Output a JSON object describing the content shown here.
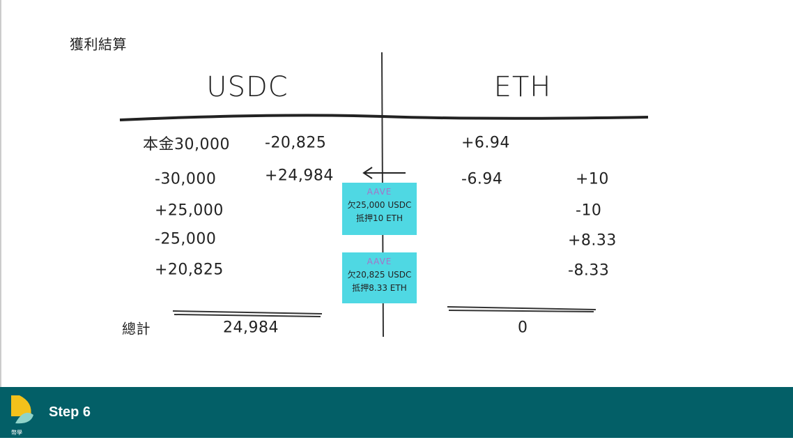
{
  "header": {
    "title": "獲利結算"
  },
  "columns": {
    "usdc": {
      "heading": "USDC",
      "entries": [
        "本金30,000",
        "-20,825",
        "-30,000",
        "+24,984",
        "+25,000",
        "-25,000",
        "+20,825"
      ],
      "total": "24,984"
    },
    "eth": {
      "heading": "ETH",
      "entries": [
        "+6.94",
        "-6.94",
        "+10",
        "-10",
        "+8.33",
        "-8.33"
      ],
      "total": "0"
    }
  },
  "total_label": "總計",
  "aave_boxes": [
    {
      "logo": "AAVE",
      "debt": "欠25,000 USDC",
      "collateral": "抵押10 ETH"
    },
    {
      "logo": "AAVE",
      "debt": "欠20,825 USDC",
      "collateral": "抵押8.33 ETH"
    }
  ],
  "footer": {
    "step": "Step 6",
    "logo_caption": "幣學"
  }
}
